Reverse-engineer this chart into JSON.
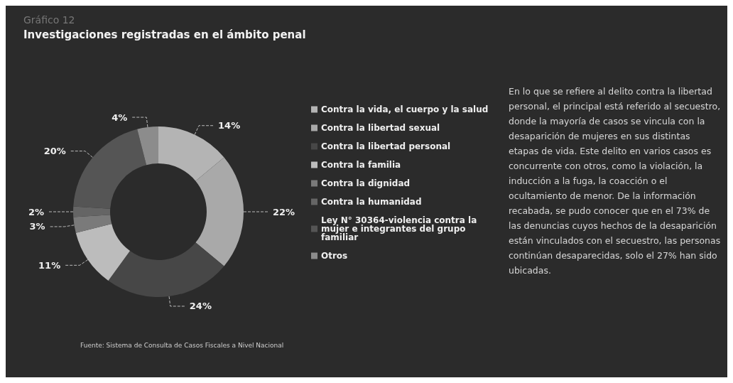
{
  "chart_data": {
    "type": "donut",
    "subtitle": "Gráfico 12",
    "title": "Investigaciones registradas en el ámbito penal",
    "categories": [
      "Contra la vida, el cuerpo y la salud",
      "Contra la libertad sexual",
      "Contra la libertad personal",
      "Contra la familia",
      "Contra la dignidad",
      "Contra la humanidad",
      "Ley N° 30364-violencia contra la mujer e integrantes del grupo familiar",
      "Otros"
    ],
    "values": [
      14,
      22,
      24,
      11,
      3,
      2,
      20,
      4
    ],
    "value_labels": [
      "14%",
      "22%",
      "24%",
      "11%",
      "3%",
      "2%",
      "20%",
      "4%"
    ],
    "colors": [
      "#b4b4b4",
      "#a9a9a9",
      "#474747",
      "#bcbcbc",
      "#7a7a7a",
      "#656565",
      "#555555",
      "#8c8c8c"
    ],
    "legend": "right",
    "annotations": [
      "Fuente: Sistema de Consulta de Casos Fiscales a Nivel Nacional",
      "En lo que se refiere al delito contra la libertad personal, el principal está referido al secuestro, donde la mayoría de casos se vincula con la desaparición de mujeres en sus distintas etapas de vida. Este delito en varios casos es concurrente con otros, como la violación, la inducción a la fuga, la coacción o el ocultamiento de menor. De la información recabada, se pudo conocer que en el 73% de las denuncias cuyos hechos de la desaparición están vinculados con el secuestro, las personas continúan desaparecidas, solo el 27% han sido ubicadas."
    ]
  }
}
